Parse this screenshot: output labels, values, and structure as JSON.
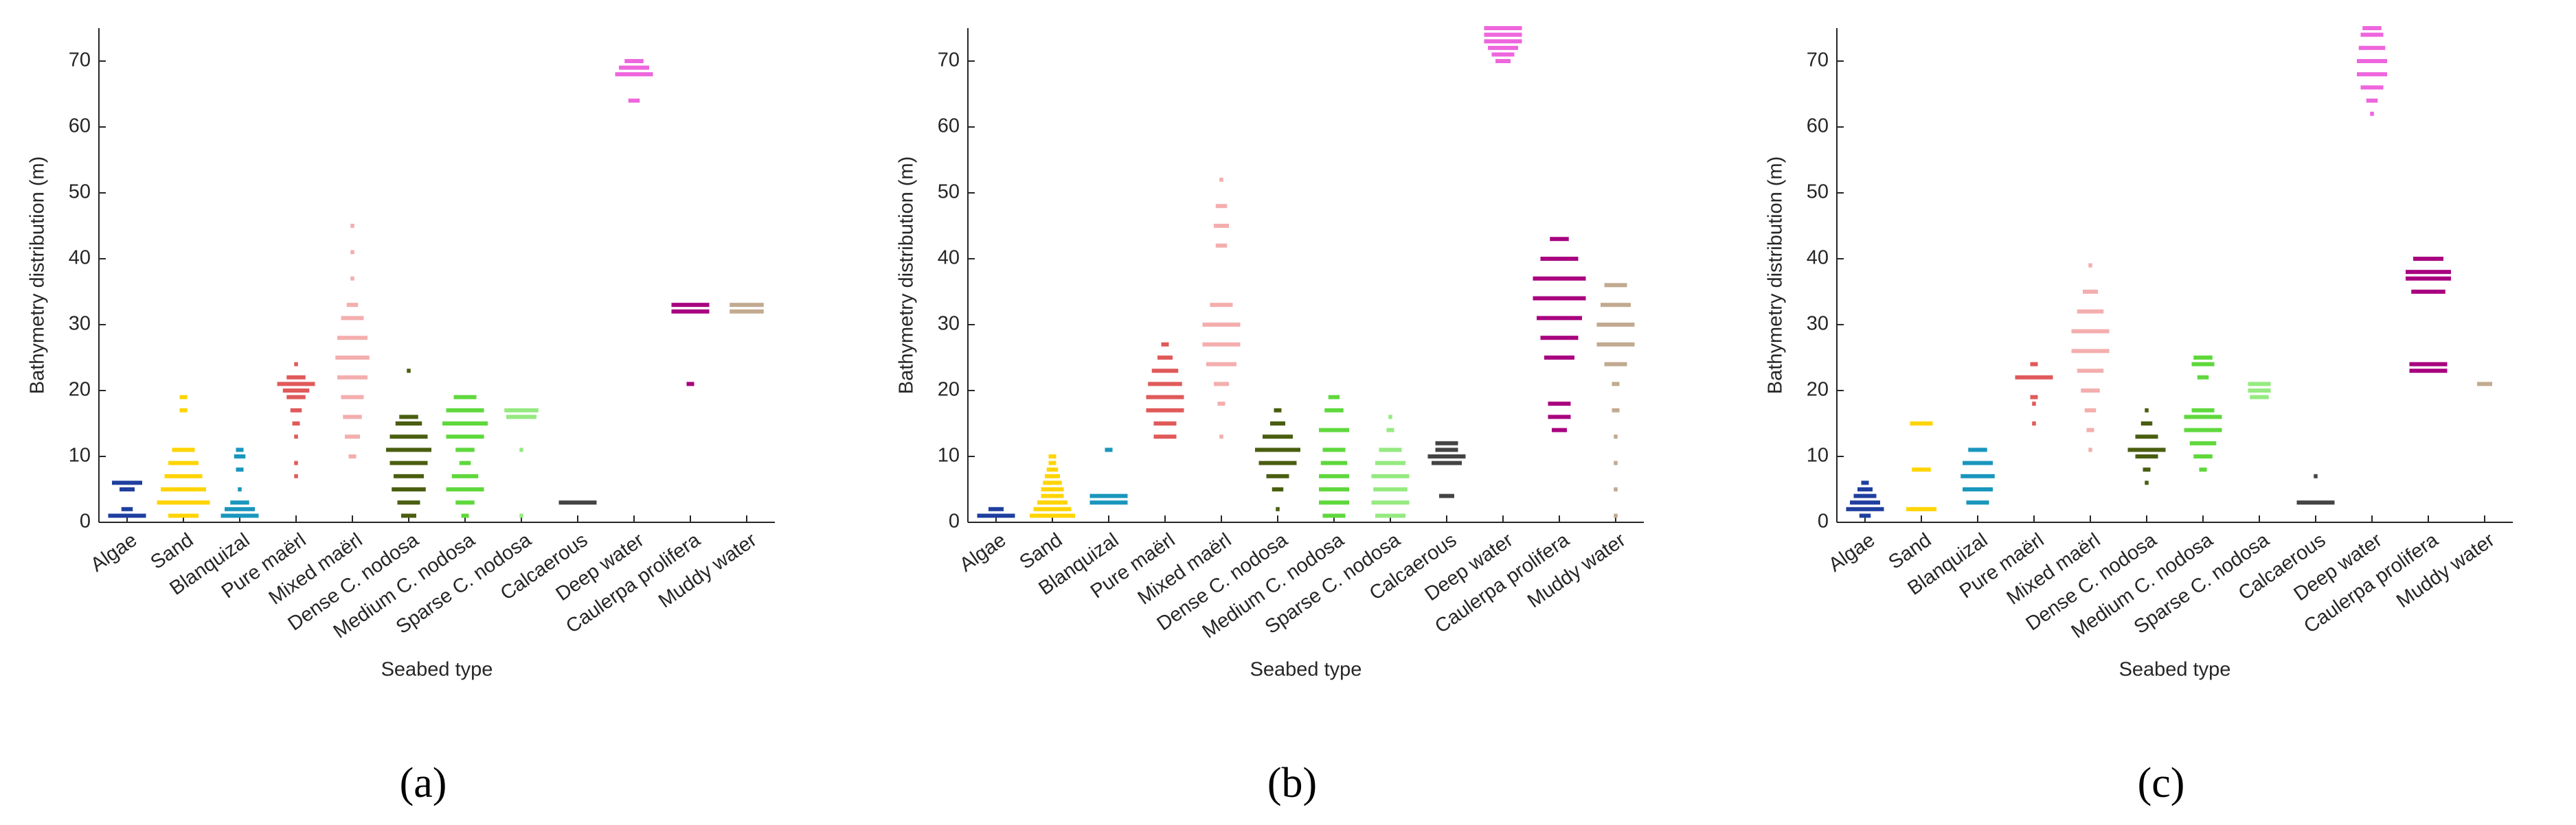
{
  "chart_data": [
    {
      "type": "swarm",
      "panel_label": "(a)",
      "xlabel": "Seabed type",
      "ylabel": "Bathymetry distribution (m)",
      "ylim": [
        0,
        75
      ],
      "yticks": [
        0,
        10,
        20,
        30,
        40,
        50,
        60,
        70
      ],
      "categories": [
        "Algae",
        "Sand",
        "Blanquizal",
        "Pure maërl",
        "Mixed maërl",
        "Dense C. nodosa",
        "Medium C. nodosa",
        "Sparse C. nodosa",
        "Calcaerous",
        "Deep water",
        "Caulerpa prolifera",
        "Muddy water"
      ],
      "colors": [
        "#1f3f9f",
        "#ffd400",
        "#1a96bd",
        "#e05a5a",
        "#f4aeae",
        "#4a5e10",
        "#5fd83c",
        "#95ea80",
        "#444444",
        "#ee66dd",
        "#a8007f",
        "#c2aa90"
      ],
      "groups": [
        {
          "values": [
            1,
            2,
            5,
            6
          ],
          "counts": [
            10,
            3,
            4,
            8
          ]
        },
        {
          "values": [
            1,
            3,
            5,
            7,
            9,
            11,
            17,
            19
          ],
          "counts": [
            8,
            14,
            12,
            10,
            8,
            6,
            2,
            2
          ]
        },
        {
          "values": [
            1,
            2,
            3,
            5,
            8,
            10,
            11
          ],
          "counts": [
            10,
            8,
            5,
            1,
            2,
            3,
            2
          ]
        },
        {
          "values": [
            7,
            9,
            13,
            15,
            17,
            19,
            20,
            21,
            22,
            24
          ],
          "counts": [
            1,
            1,
            1,
            2,
            3,
            5,
            7,
            10,
            5,
            1
          ]
        },
        {
          "values": [
            10,
            13,
            16,
            19,
            22,
            25,
            28,
            31,
            33,
            37,
            41,
            45
          ],
          "counts": [
            2,
            4,
            5,
            6,
            8,
            9,
            8,
            6,
            3,
            1,
            1,
            1
          ]
        },
        {
          "values": [
            1,
            3,
            5,
            7,
            9,
            11,
            13,
            15,
            16,
            23
          ],
          "counts": [
            4,
            6,
            9,
            8,
            10,
            12,
            10,
            7,
            5,
            1
          ]
        },
        {
          "values": [
            1,
            3,
            5,
            7,
            9,
            11,
            13,
            15,
            17,
            19
          ],
          "counts": [
            2,
            5,
            10,
            7,
            3,
            5,
            10,
            12,
            10,
            6
          ]
        },
        {
          "values": [
            1,
            11,
            16,
            17
          ],
          "counts": [
            1,
            1,
            8,
            9
          ]
        },
        {
          "values": [
            3
          ],
          "counts": [
            10
          ]
        },
        {
          "values": [
            64,
            68,
            69,
            70
          ],
          "counts": [
            3,
            10,
            8,
            5
          ]
        },
        {
          "values": [
            21,
            32,
            33
          ],
          "counts": [
            2,
            10,
            10
          ]
        },
        {
          "values": [
            32,
            33
          ],
          "counts": [
            9,
            9
          ]
        }
      ]
    },
    {
      "type": "swarm",
      "panel_label": "(b)",
      "xlabel": "Seabed type",
      "ylabel": "Bathymetry distribution (m)",
      "ylim": [
        0,
        75
      ],
      "yticks": [
        0,
        10,
        20,
        30,
        40,
        50,
        60,
        70
      ],
      "categories": [
        "Algae",
        "Sand",
        "Blanquizal",
        "Pure maërl",
        "Mixed maërl",
        "Dense C. nodosa",
        "Medium C. nodosa",
        "Sparse C. nodosa",
        "Calcaerous",
        "Deep water",
        "Caulerpa prolifera",
        "Muddy water"
      ],
      "colors": [
        "#1f3f9f",
        "#ffd400",
        "#1a96bd",
        "#e05a5a",
        "#f4aeae",
        "#4a5e10",
        "#5fd83c",
        "#95ea80",
        "#444444",
        "#ee66dd",
        "#a8007f",
        "#c2aa90"
      ],
      "groups": [
        {
          "values": [
            1,
            2
          ],
          "counts": [
            10,
            4
          ]
        },
        {
          "values": [
            1,
            2,
            3,
            4,
            5,
            6,
            7,
            8,
            9,
            10
          ],
          "counts": [
            12,
            10,
            8,
            6,
            6,
            5,
            4,
            3,
            2,
            2
          ]
        },
        {
          "values": [
            3,
            4,
            11
          ],
          "counts": [
            10,
            10,
            2
          ]
        },
        {
          "values": [
            13,
            15,
            17,
            19,
            21,
            23,
            25,
            27
          ],
          "counts": [
            6,
            6,
            10,
            10,
            9,
            7,
            4,
            2
          ]
        },
        {
          "values": [
            13,
            18,
            21,
            24,
            27,
            30,
            33,
            42,
            45,
            48,
            52
          ],
          "counts": [
            1,
            2,
            4,
            8,
            10,
            10,
            6,
            3,
            4,
            3,
            1
          ]
        },
        {
          "values": [
            2,
            5,
            7,
            9,
            11,
            13,
            15,
            17
          ],
          "counts": [
            1,
            3,
            6,
            10,
            12,
            8,
            4,
            2
          ]
        },
        {
          "values": [
            1,
            3,
            5,
            7,
            9,
            11,
            14,
            17,
            19
          ],
          "counts": [
            6,
            8,
            8,
            8,
            7,
            6,
            8,
            5,
            3
          ]
        },
        {
          "values": [
            1,
            3,
            5,
            7,
            9,
            11,
            14,
            16
          ],
          "counts": [
            8,
            10,
            9,
            10,
            8,
            6,
            2,
            1
          ]
        },
        {
          "values": [
            4,
            9,
            10,
            11,
            12
          ],
          "counts": [
            4,
            8,
            10,
            6,
            6
          ]
        },
        {
          "values": [
            70,
            71,
            72,
            73,
            74,
            75
          ],
          "counts": [
            4,
            6,
            8,
            10,
            10,
            10
          ]
        },
        {
          "values": [
            14,
            16,
            18,
            25,
            28,
            31,
            34,
            37,
            40,
            43
          ],
          "counts": [
            4,
            6,
            6,
            8,
            10,
            12,
            14,
            14,
            10,
            5
          ]
        },
        {
          "values": [
            1,
            5,
            9,
            13,
            17,
            21,
            24,
            27,
            30,
            33,
            36
          ],
          "counts": [
            1,
            1,
            1,
            1,
            2,
            2,
            6,
            10,
            10,
            8,
            6
          ]
        }
      ]
    },
    {
      "type": "swarm",
      "panel_label": "(c)",
      "xlabel": "Seabed type",
      "ylabel": "Bathymetry distribution (m)",
      "ylim": [
        0,
        75
      ],
      "yticks": [
        0,
        10,
        20,
        30,
        40,
        50,
        60,
        70
      ],
      "categories": [
        "Algae",
        "Sand",
        "Blanquizal",
        "Pure maërl",
        "Mixed maërl",
        "Dense C. nodosa",
        "Medium C. nodosa",
        "Sparse C. nodosa",
        "Calcaerous",
        "Deep water",
        "Caulerpa prolifera",
        "Muddy water"
      ],
      "colors": [
        "#1f3f9f",
        "#ffd400",
        "#1a96bd",
        "#e05a5a",
        "#f4aeae",
        "#4a5e10",
        "#5fd83c",
        "#95ea80",
        "#444444",
        "#ee66dd",
        "#a8007f",
        "#c2aa90"
      ],
      "groups": [
        {
          "values": [
            1,
            2,
            3,
            4,
            5,
            6
          ],
          "counts": [
            3,
            10,
            8,
            6,
            4,
            2
          ]
        },
        {
          "values": [
            2,
            8,
            15
          ],
          "counts": [
            8,
            5,
            6
          ]
        },
        {
          "values": [
            3,
            5,
            7,
            9,
            11
          ],
          "counts": [
            6,
            8,
            9,
            8,
            5
          ]
        },
        {
          "values": [
            15,
            18,
            19,
            22,
            24
          ],
          "counts": [
            1,
            1,
            2,
            10,
            2
          ]
        },
        {
          "values": [
            11,
            14,
            17,
            20,
            23,
            26,
            29,
            32,
            35,
            39
          ],
          "counts": [
            1,
            2,
            3,
            5,
            7,
            10,
            10,
            7,
            4,
            1
          ]
        },
        {
          "values": [
            6,
            8,
            10,
            11,
            13,
            15,
            17
          ],
          "counts": [
            1,
            2,
            6,
            10,
            6,
            3,
            1
          ]
        },
        {
          "values": [
            8,
            10,
            12,
            14,
            16,
            17,
            22,
            24,
            25
          ],
          "counts": [
            2,
            5,
            7,
            10,
            10,
            6,
            3,
            6,
            5
          ]
        },
        {
          "values": [
            19,
            20,
            21
          ],
          "counts": [
            5,
            6,
            6
          ]
        },
        {
          "values": [
            3,
            7
          ],
          "counts": [
            10,
            1
          ]
        },
        {
          "values": [
            62,
            64,
            66,
            68,
            70,
            72,
            74,
            75
          ],
          "counts": [
            1,
            3,
            6,
            8,
            8,
            7,
            6,
            5
          ]
        },
        {
          "values": [
            23,
            24,
            35,
            37,
            38,
            40
          ],
          "counts": [
            10,
            10,
            9,
            12,
            12,
            8
          ]
        },
        {
          "values": [
            21
          ],
          "counts": [
            4
          ]
        }
      ]
    }
  ]
}
